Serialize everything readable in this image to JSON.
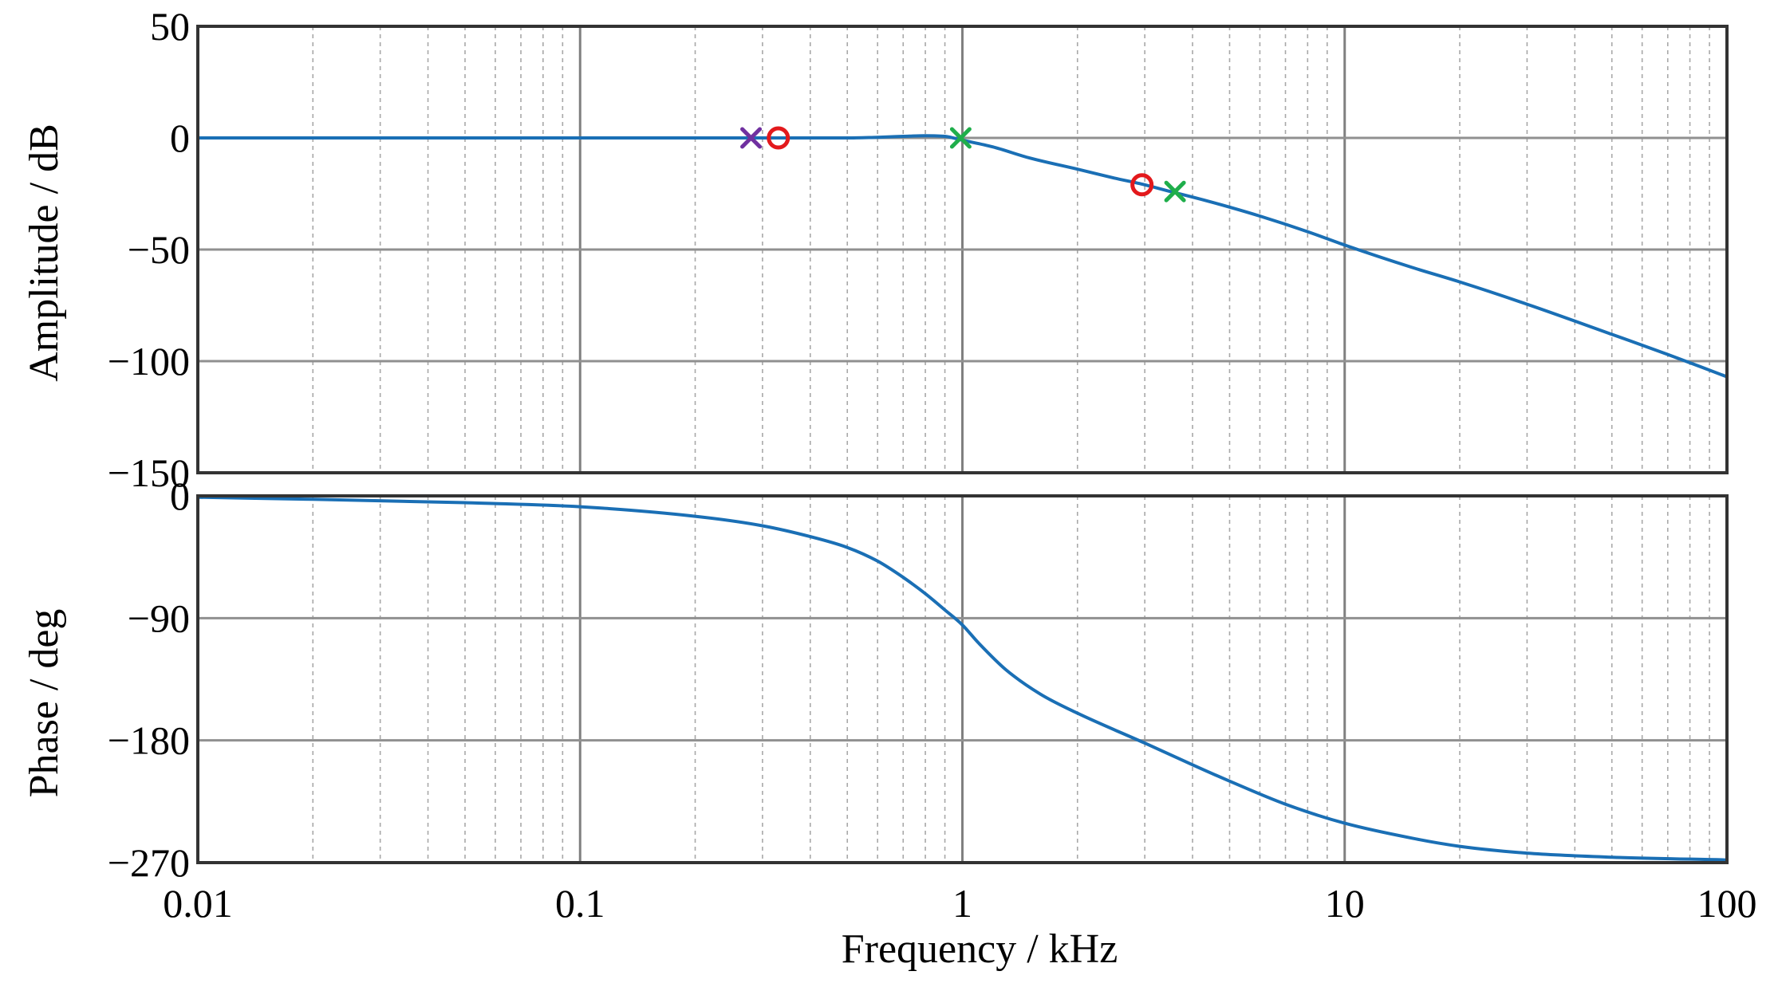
{
  "chart_data": [
    {
      "type": "line",
      "panel": "amplitude",
      "x_scale": "log",
      "xlim": [
        0.01,
        100
      ],
      "ylim": [
        -150,
        50
      ],
      "yticks": [
        50,
        0,
        -50,
        -100,
        -150
      ],
      "ytick_labels": [
        "50",
        "0",
        "−50",
        "−100",
        "−150"
      ],
      "ylabel": "Amplitude / dB",
      "grid": true,
      "series": [
        {
          "name": "amplitude",
          "color": "#1a6fb5",
          "x": [
            0.01,
            0.02,
            0.05,
            0.1,
            0.2,
            0.3,
            0.4,
            0.5,
            0.6,
            0.7,
            0.8,
            0.9,
            1,
            1.2,
            1.5,
            2,
            2.5,
            3,
            3.5,
            4,
            5,
            6,
            8,
            10,
            15,
            20,
            30,
            50,
            70,
            100
          ],
          "values": [
            0,
            0,
            0,
            0,
            0,
            0,
            0,
            0,
            0.3,
            0.7,
            1,
            0.7,
            -1,
            -4,
            -9,
            -14,
            -18,
            -21,
            -24,
            -26.5,
            -31,
            -35,
            -42,
            -48,
            -58,
            -64.5,
            -74.5,
            -88,
            -97,
            -107
          ]
        }
      ],
      "markers": [
        {
          "shape": "x",
          "color": "#7030a0",
          "x": 0.28,
          "y": 0
        },
        {
          "shape": "o",
          "color": "#e3191c",
          "x": 0.33,
          "y": 0
        },
        {
          "shape": "x",
          "color": "#1fae4b",
          "x": 0.99,
          "y": 0
        },
        {
          "shape": "o",
          "color": "#e3191c",
          "x": 2.95,
          "y": -21
        },
        {
          "shape": "x",
          "color": "#1fae4b",
          "x": 3.6,
          "y": -24
        }
      ]
    },
    {
      "type": "line",
      "panel": "phase",
      "x_scale": "log",
      "xlim": [
        0.01,
        100
      ],
      "ylim": [
        -270,
        0
      ],
      "yticks": [
        0,
        -90,
        -180,
        -270
      ],
      "ytick_labels": [
        "0",
        "−90",
        "−180",
        "−270"
      ],
      "ylabel": "Phase / deg",
      "xlabel": "Frequency / kHz",
      "xticks": [
        0.01,
        0.1,
        1,
        10,
        100
      ],
      "xtick_labels": [
        "0.01",
        "0.1",
        "1",
        "10",
        "100"
      ],
      "grid": true,
      "series": [
        {
          "name": "phase",
          "color": "#1a6fb5",
          "x": [
            0.01,
            0.02,
            0.05,
            0.1,
            0.2,
            0.3,
            0.4,
            0.5,
            0.6,
            0.7,
            0.8,
            0.9,
            1,
            1.1,
            1.3,
            1.6,
            2,
            3,
            4,
            5,
            7,
            10,
            15,
            20,
            30,
            50,
            100
          ],
          "values": [
            -1,
            -2.5,
            -5,
            -8,
            -15,
            -22,
            -30,
            -38,
            -48,
            -60,
            -72,
            -84,
            -95,
            -108,
            -128,
            -146,
            -160,
            -182,
            -198,
            -210,
            -227,
            -241,
            -252,
            -258,
            -263,
            -266,
            -268
          ]
        }
      ]
    }
  ]
}
